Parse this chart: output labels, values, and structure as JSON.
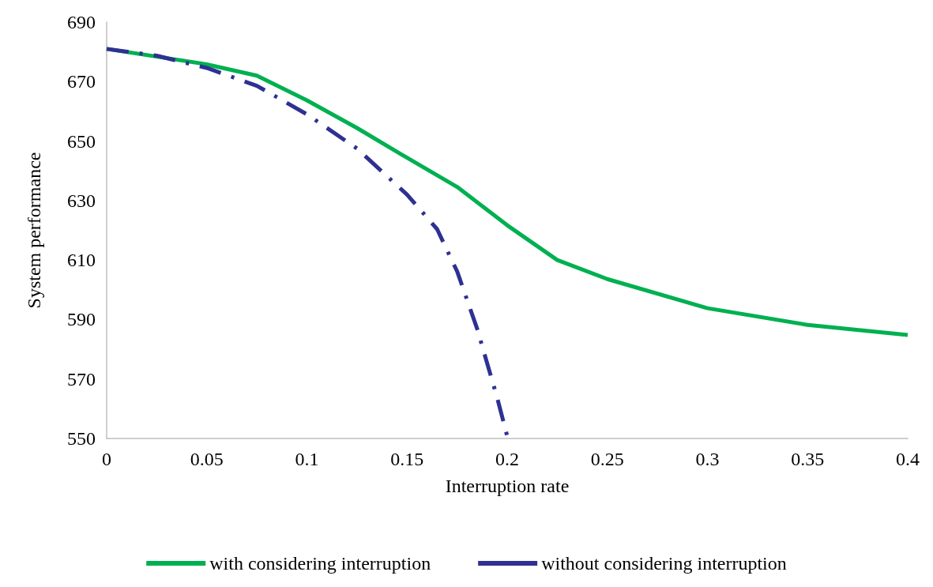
{
  "chart_data": {
    "type": "line",
    "xlabel": "Interruption rate",
    "ylabel": "System performance",
    "xlim": [
      0,
      0.4
    ],
    "xticks": [
      0,
      0.05,
      0.1,
      0.15,
      0.2,
      0.25,
      0.3,
      0.35,
      0.4
    ],
    "ylim": [
      550,
      690
    ],
    "yticks": [
      550,
      570,
      590,
      610,
      630,
      650,
      670,
      690
    ],
    "grid": false,
    "legend": "bottom",
    "marker": "none",
    "series": [
      {
        "name": "with considering interruption",
        "color": "#00b050",
        "line_style": "solid",
        "x": [
          0,
          0.05,
          0.075,
          0.1,
          0.125,
          0.15,
          0.175,
          0.2,
          0.225,
          0.25,
          0.3,
          0.35,
          0.4
        ],
        "values": [
          681,
          675.8,
          672,
          663.7,
          654.4,
          644.4,
          634.6,
          621.7,
          610,
          603.6,
          593.8,
          588.2,
          584.8
        ]
      },
      {
        "name": "without considering interruption",
        "color": "#2e3192",
        "line_style": "dashed",
        "x": [
          0,
          0.025,
          0.05,
          0.075,
          0.1,
          0.125,
          0.15,
          0.165,
          0.175,
          0.185,
          0.195,
          0.2
        ],
        "values": [
          681,
          678.7,
          674.6,
          668.6,
          659,
          647.5,
          632,
          620.4,
          606.2,
          586.9,
          563.7,
          550.8
        ]
      }
    ]
  }
}
